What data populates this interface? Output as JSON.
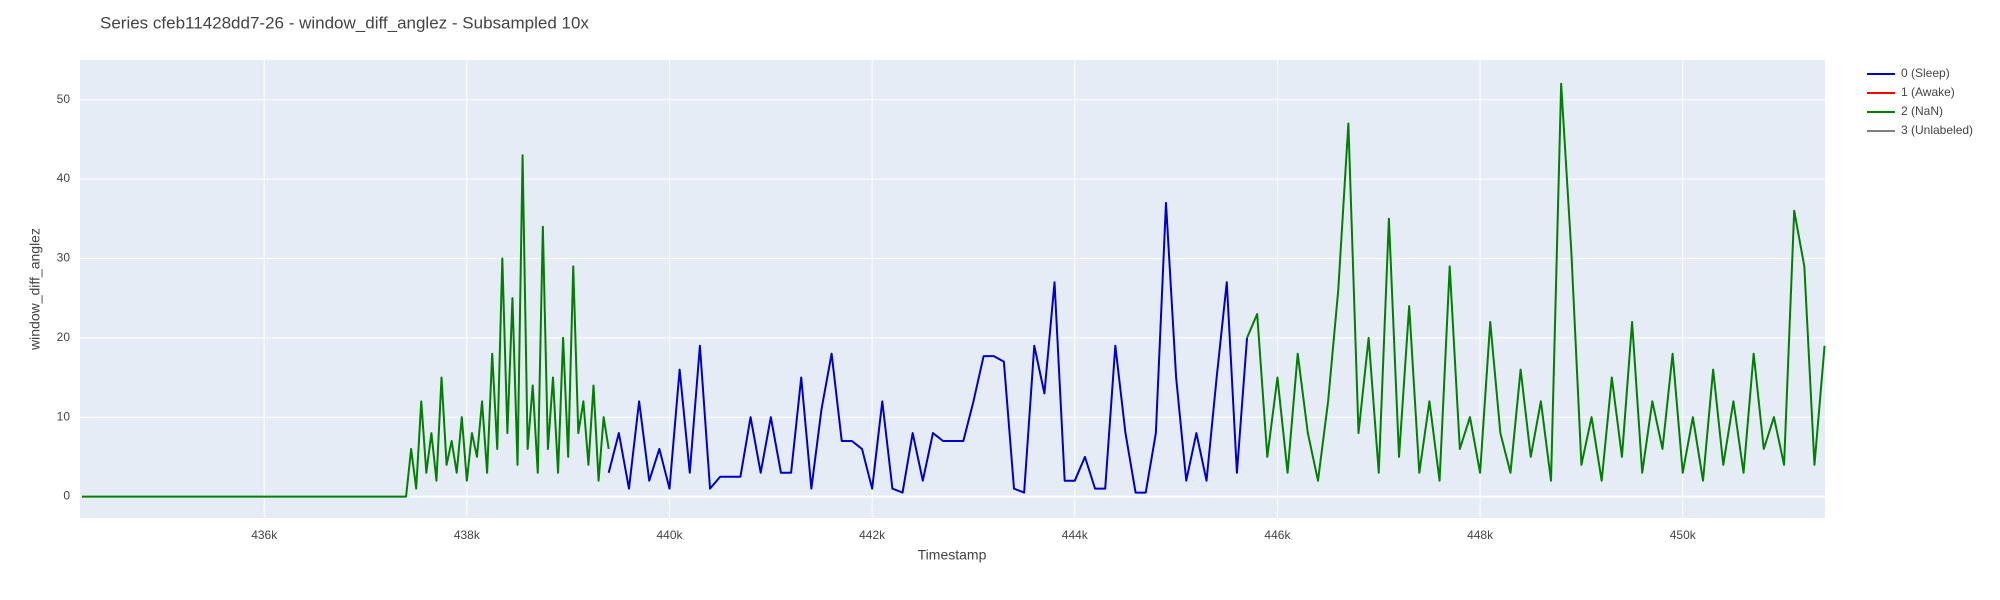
{
  "chart_data": {
    "type": "line",
    "title": "Series cfeb11428dd7-26 - window_diff_anglez - Subsampled 10x",
    "x_label": "Timestamp",
    "y_label": "window_diff_anglez",
    "xlim": [
      434182,
      451404
    ],
    "ylim": [
      -2.7,
      55
    ],
    "xticks": [
      {
        "value": 436000,
        "label": "436k"
      },
      {
        "value": 438000,
        "label": "438k"
      },
      {
        "value": 440000,
        "label": "440k"
      },
      {
        "value": 442000,
        "label": "442k"
      },
      {
        "value": 444000,
        "label": "444k"
      },
      {
        "value": 446000,
        "label": "446k"
      },
      {
        "value": 448000,
        "label": "448k"
      },
      {
        "value": 450000,
        "label": "450k"
      }
    ],
    "yticks": [
      0,
      10,
      20,
      30,
      40,
      50
    ],
    "grid": true,
    "series": [
      {
        "name": "0 (Sleep)",
        "color": "#0000cc",
        "x": [
          439400,
          439500,
          439600,
          439700,
          439800,
          439900,
          440000,
          440100,
          440200,
          440300,
          440400,
          440500,
          440600,
          440700,
          440800,
          440900,
          441000,
          441100,
          441200,
          441300,
          441400,
          441500,
          441600,
          441700,
          441800,
          441900,
          442000,
          442100,
          442200,
          442300,
          442400,
          442500,
          442600,
          442700,
          442800,
          442900,
          443000,
          443100,
          443200,
          443300,
          443400,
          443500,
          443600,
          443700,
          443800,
          443900,
          444000,
          444100,
          444200,
          444300,
          444400,
          444500,
          444600,
          444700,
          444800,
          444900,
          445000,
          445100,
          445200,
          445300,
          445400,
          445500,
          445600,
          445700
        ],
        "values": [
          3,
          8,
          1,
          12,
          2,
          6,
          1,
          16,
          3,
          19,
          1,
          2.5,
          2.5,
          2.5,
          10,
          3,
          10,
          3,
          3,
          15,
          1,
          11,
          18,
          7,
          7,
          6,
          1,
          12,
          1,
          0.5,
          8,
          2,
          8,
          7,
          7,
          7,
          12,
          17.7,
          17.7,
          17,
          1,
          0.5,
          19,
          13,
          27,
          2,
          2,
          5,
          1,
          1,
          19,
          8,
          0.5,
          0.5,
          8,
          37,
          15,
          2,
          8,
          2,
          15,
          27,
          3,
          20
        ]
      },
      {
        "name": "1 (Awake)",
        "color": "#ff0000",
        "x": [],
        "values": []
      },
      {
        "name": "2 (NaN)",
        "color": "#008000",
        "x": [
          434200,
          437400,
          437450,
          437500,
          437550,
          437600,
          437650,
          437700,
          437750,
          437800,
          437850,
          437900,
          437950,
          438000,
          438050,
          438100,
          438150,
          438200,
          438250,
          438300,
          438350,
          438400,
          438450,
          438500,
          438550,
          438600,
          438650,
          438700,
          438750,
          438800,
          438850,
          438900,
          438950,
          439000,
          439050,
          439100,
          439150,
          439200,
          439250,
          439300,
          439350,
          439400,
          null,
          445700,
          445800,
          445900,
          446000,
          446100,
          446200,
          446300,
          446400,
          446500,
          446600,
          446700,
          446800,
          446900,
          447000,
          447100,
          447200,
          447300,
          447400,
          447500,
          447600,
          447700,
          447800,
          447900,
          448000,
          448100,
          448200,
          448300,
          448400,
          448500,
          448600,
          448700,
          448800,
          448900,
          449000,
          449100,
          449200,
          449300,
          449400,
          449500,
          449600,
          449700,
          449800,
          449900,
          450000,
          450100,
          450200,
          450300,
          450400,
          450500,
          450600,
          450700,
          450800,
          450900,
          451000,
          451100,
          451200,
          451300,
          451400
        ],
        "values": [
          0,
          0,
          6,
          1,
          12,
          3,
          8,
          2,
          15,
          4,
          7,
          3,
          10,
          2,
          8,
          5,
          12,
          3,
          18,
          6,
          30,
          8,
          25,
          4,
          43,
          6,
          14,
          3,
          34,
          6,
          15,
          3,
          20,
          5,
          29,
          8,
          12,
          4,
          14,
          2,
          10,
          6,
          null,
          20,
          23,
          5,
          15,
          3,
          18,
          8,
          2,
          12,
          26,
          47,
          8,
          20,
          3,
          35,
          5,
          24,
          3,
          12,
          2,
          29,
          6,
          10,
          3,
          22,
          8,
          3,
          16,
          5,
          12,
          2,
          52,
          31,
          4,
          10,
          2,
          15,
          5,
          22,
          3,
          12,
          6,
          18,
          3,
          10,
          2,
          16,
          4,
          12,
          3,
          18,
          6,
          10,
          4,
          36,
          29,
          4,
          19
        ]
      },
      {
        "name": "3 (Unlabeled)",
        "color": "#808080",
        "x": [],
        "values": []
      }
    ]
  }
}
